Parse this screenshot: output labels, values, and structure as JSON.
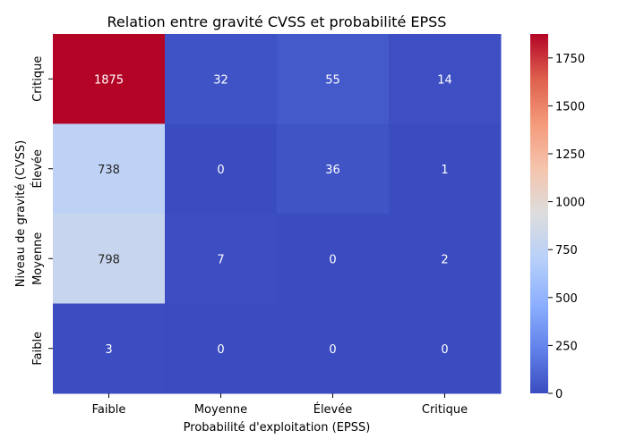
{
  "chart_data": {
    "type": "heatmap",
    "title": "Relation entre gravité CVSS et probabilité EPSS",
    "xlabel": "Probabilité d'exploitation (EPSS)",
    "ylabel": "Niveau de gravité (CVSS)",
    "x_categories": [
      "Faible",
      "Moyenne",
      "Élevée",
      "Critique"
    ],
    "y_categories": [
      "Critique",
      "Élevée",
      "Moyenne",
      "Faible"
    ],
    "values": [
      [
        1875,
        32,
        55,
        14
      ],
      [
        738,
        0,
        36,
        1
      ],
      [
        798,
        7,
        0,
        2
      ],
      [
        3,
        0,
        0,
        0
      ]
    ],
    "colormap": "coolwarm",
    "colorbar": {
      "range": [
        0,
        1875
      ],
      "ticks": [
        0,
        250,
        500,
        750,
        1000,
        1250,
        1500,
        1750
      ]
    }
  }
}
